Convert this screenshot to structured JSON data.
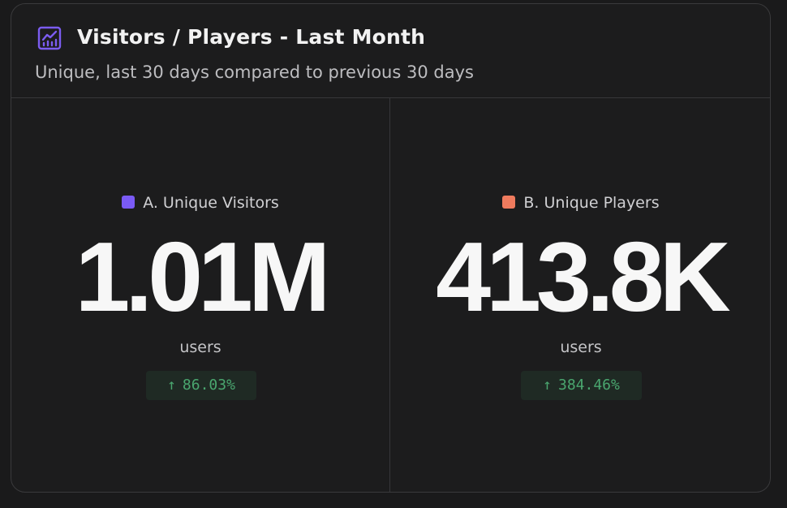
{
  "header": {
    "icon": "line-chart-icon",
    "title": "Visitors / Players - Last Month",
    "subtitle": "Unique, last 30 days compared to previous 30 days",
    "accent_color": "#7b5cf0"
  },
  "metrics": [
    {
      "label": "A. Unique Visitors",
      "color": "#7a5af5",
      "value": "1.01M",
      "unit": "users",
      "change_arrow": "↑",
      "change": "86.03%",
      "change_color": "#4aa66f"
    },
    {
      "label": "B. Unique Players",
      "color": "#ef7b5e",
      "value": "413.8K",
      "unit": "users",
      "change_arrow": "↑",
      "change": "384.46%",
      "change_color": "#4aa66f"
    }
  ]
}
